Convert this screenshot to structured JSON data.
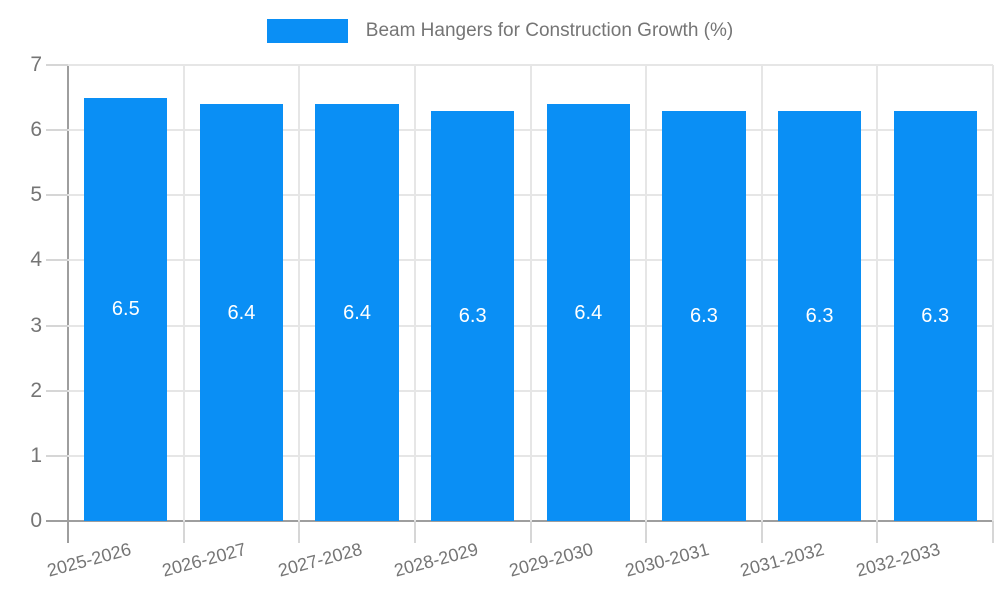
{
  "chart_data": {
    "type": "bar",
    "title": "Beam Hangers for Construction Growth (%)",
    "categories": [
      "2025-2026",
      "2026-2027",
      "2027-2028",
      "2028-2029",
      "2029-2030",
      "2030-2031",
      "2031-2032",
      "2032-2033"
    ],
    "values": [
      6.5,
      6.4,
      6.4,
      6.3,
      6.4,
      6.3,
      6.3,
      6.3
    ],
    "value_labels": [
      "6.5",
      "6.4",
      "6.4",
      "6.3",
      "6.4",
      "6.3",
      "6.3",
      "6.3"
    ],
    "xlabel": "",
    "ylabel": "",
    "ylim": [
      0,
      7
    ],
    "yticks": [
      0,
      1,
      2,
      3,
      4,
      5,
      6,
      7
    ],
    "grid": true,
    "legend_position": "top"
  },
  "legend": {
    "label": "Beam Hangers for Construction Growth (%)"
  },
  "colors": {
    "bar": "#0a8ff5",
    "value_text": "#ffffff",
    "axis": "#9e9e9e",
    "gridline": "#e6e6e6",
    "tick": "#d6d6d6",
    "label_text": "#757575"
  }
}
